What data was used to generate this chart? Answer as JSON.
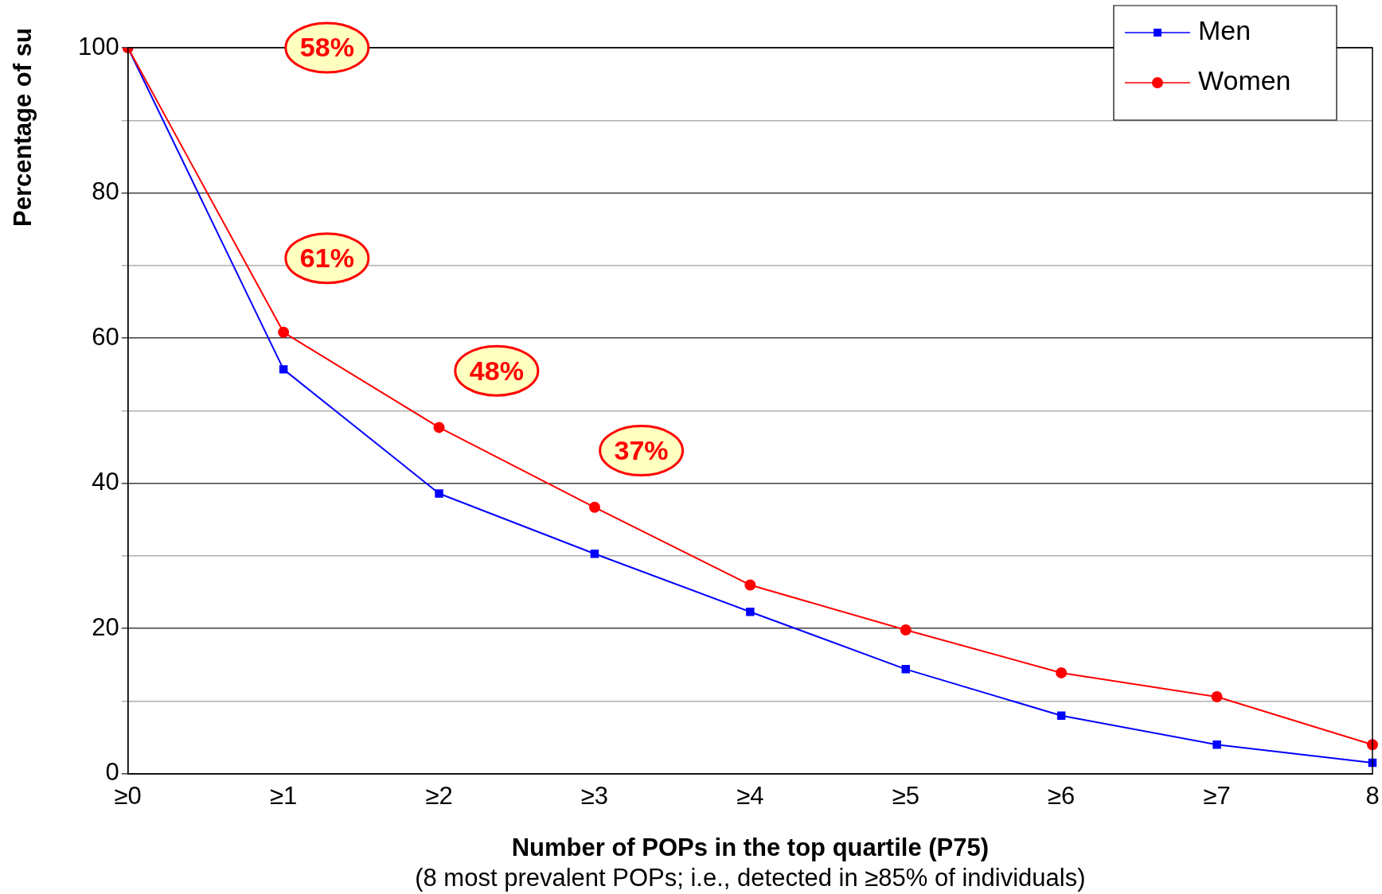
{
  "chart_data": {
    "type": "line",
    "ylabel": "Percentage of su",
    "xlabel": "Number of POPs in the top quartile (P75)\n(8 most prevalent POPs; i.e., detected in ≥85% of individuals)",
    "categories": [
      "≥0",
      "≥1",
      "≥2",
      "≥3",
      "≥4",
      "≥5",
      "≥6",
      "≥7",
      "8"
    ],
    "series": [
      {
        "name": "Men",
        "color": "#0000ff",
        "marker": "square",
        "values": [
          100,
          55.7,
          38.6,
          30.3,
          22.3,
          14.4,
          8.0,
          4.0,
          1.5
        ]
      },
      {
        "name": "Women",
        "color": "#ff0000",
        "marker": "circle",
        "values": [
          100,
          60.8,
          47.7,
          36.7,
          26.0,
          19.8,
          13.9,
          10.6,
          4.0
        ]
      }
    ],
    "ylim": [
      0,
      100
    ],
    "yticks": [
      0,
      {
        "value": 10,
        "label": null
      },
      20,
      {
        "value": 30,
        "label": null
      },
      40,
      {
        "value": 50,
        "label": null
      },
      60,
      {
        "value": 70,
        "label": null
      },
      80,
      {
        "value": 90,
        "label": null
      },
      100
    ],
    "grid": "y",
    "legend": "top right",
    "line_style": "solid",
    "annotations": [
      "58%",
      "61%",
      "48%",
      "37%"
    ]
  }
}
